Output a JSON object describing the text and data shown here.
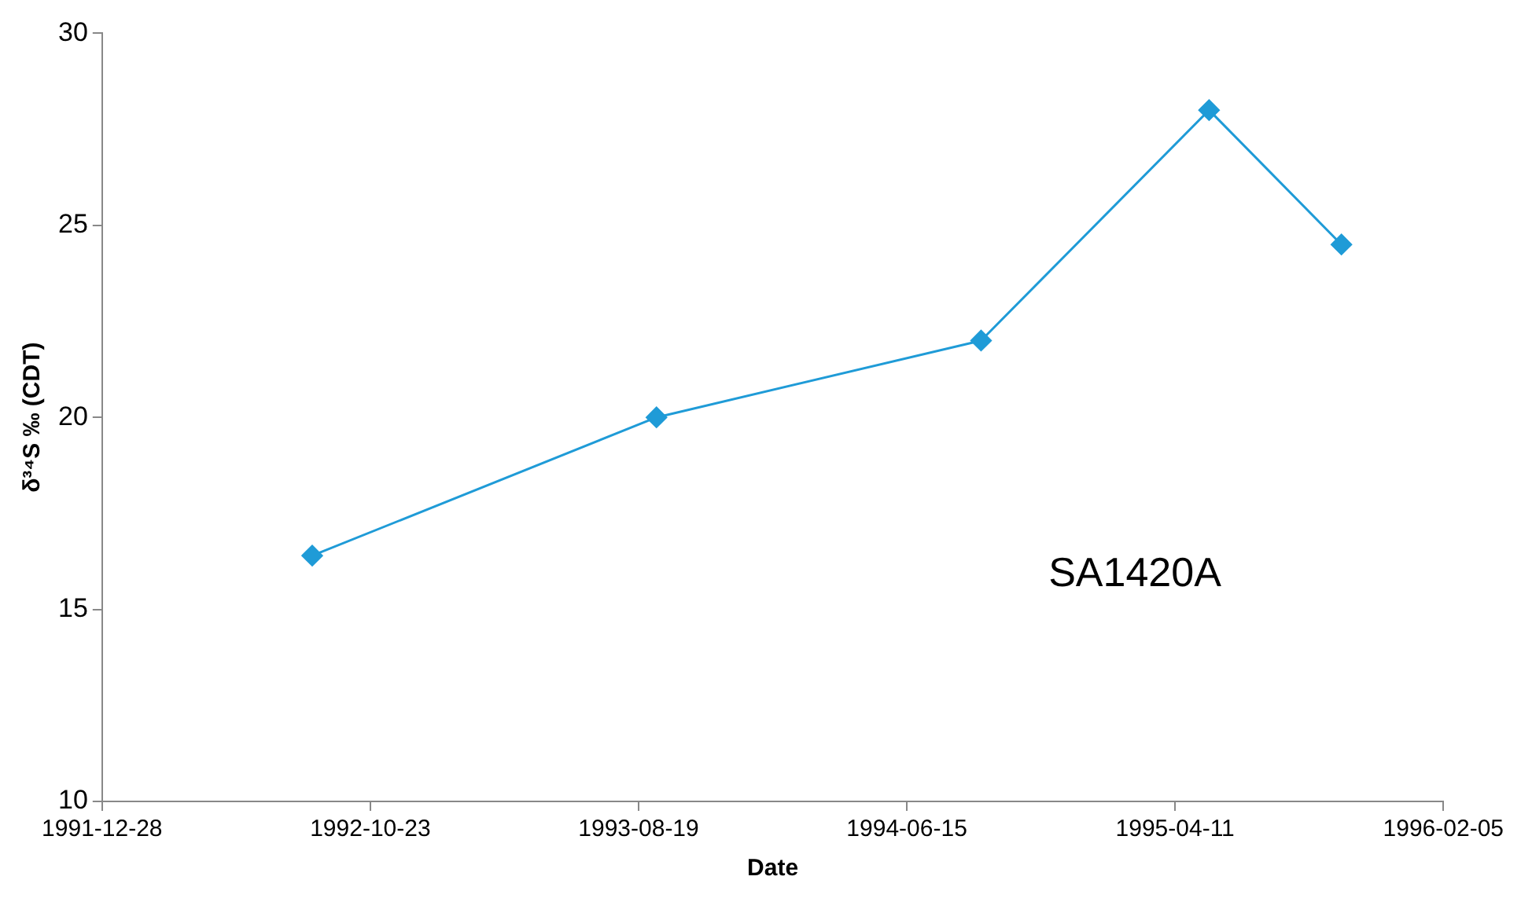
{
  "chart_data": {
    "type": "line",
    "xlabel": "Date",
    "ylabel": "δ³⁴S ‰ (CDT)",
    "annotations": [
      "SA1420A"
    ],
    "x": [
      "1992-08-19",
      "1993-09-08",
      "1994-09-06",
      "1995-05-19",
      "1995-10-14"
    ],
    "series": [
      {
        "color": "#1f9bd7",
        "values": [
          16.4,
          20,
          22,
          28,
          24.5
        ]
      }
    ],
    "xlim": [
      "1991-12-28",
      "1996-02-05"
    ],
    "xticks": [
      "1991-12-28",
      "1992-10-23",
      "1993-08-19",
      "1994-06-15",
      "1995-04-11",
      "1996-02-05"
    ],
    "ylim": [
      10,
      30
    ],
    "yticks": [
      10,
      15,
      20,
      25,
      30
    ],
    "grid": false,
    "legend": false,
    "marker": "diamond",
    "line_style": "solid"
  }
}
